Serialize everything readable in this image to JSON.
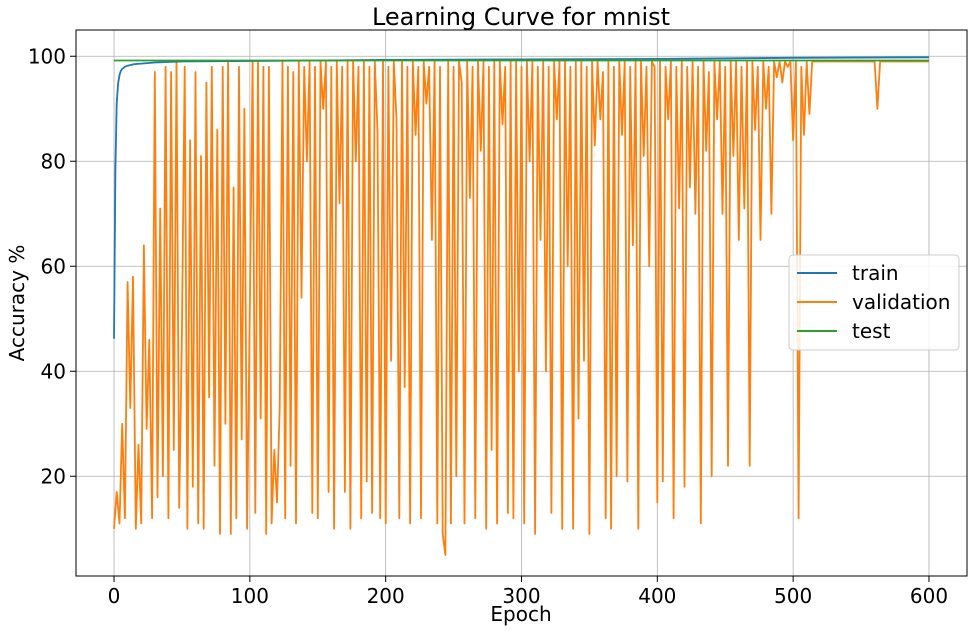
{
  "chart_data": {
    "type": "line",
    "title": "Learning Curve for mnist",
    "xlabel": "Epoch",
    "ylabel": "Accuracy %",
    "xlim": [
      -28,
      628
    ],
    "ylim": [
      1,
      105
    ],
    "xticks": [
      0,
      100,
      200,
      300,
      400,
      500,
      600
    ],
    "yticks": [
      20,
      40,
      60,
      80,
      100
    ],
    "grid": true,
    "legend_position": "center-right",
    "series": [
      {
        "name": "train",
        "color": "#1f77b4",
        "points": [
          [
            0,
            46.2
          ],
          [
            1,
            78.5
          ],
          [
            2,
            91.0
          ],
          [
            3,
            94.8
          ],
          [
            4,
            96.4
          ],
          [
            5,
            97.2
          ],
          [
            6,
            97.6
          ],
          [
            8,
            98.0
          ],
          [
            10,
            98.2
          ],
          [
            15,
            98.5
          ],
          [
            20,
            98.6
          ],
          [
            30,
            98.8
          ],
          [
            50,
            99.0
          ],
          [
            100,
            99.1
          ],
          [
            150,
            99.2
          ],
          [
            200,
            99.3
          ],
          [
            300,
            99.4
          ],
          [
            400,
            99.5
          ],
          [
            500,
            99.7
          ],
          [
            600,
            99.8
          ]
        ]
      },
      {
        "name": "validation",
        "color": "#ff7f0e",
        "points": [
          [
            0,
            10
          ],
          [
            2,
            17
          ],
          [
            4,
            11
          ],
          [
            6,
            30
          ],
          [
            8,
            12
          ],
          [
            10,
            57
          ],
          [
            12,
            33
          ],
          [
            14,
            58
          ],
          [
            16,
            10
          ],
          [
            18,
            26
          ],
          [
            20,
            11
          ],
          [
            22,
            64
          ],
          [
            24,
            29
          ],
          [
            26,
            46
          ],
          [
            28,
            12
          ],
          [
            30,
            97
          ],
          [
            32,
            16
          ],
          [
            34,
            71
          ],
          [
            36,
            20
          ],
          [
            38,
            98
          ],
          [
            40,
            12
          ],
          [
            42,
            97
          ],
          [
            44,
            25
          ],
          [
            46,
            99
          ],
          [
            48,
            14
          ],
          [
            50,
            47
          ],
          [
            52,
            98
          ],
          [
            54,
            10
          ],
          [
            56,
            84
          ],
          [
            58,
            18
          ],
          [
            60,
            97
          ],
          [
            62,
            11
          ],
          [
            64,
            81
          ],
          [
            66,
            10
          ],
          [
            68,
            95
          ],
          [
            70,
            35
          ],
          [
            72,
            98
          ],
          [
            74,
            22
          ],
          [
            76,
            86
          ],
          [
            78,
            9
          ],
          [
            80,
            98
          ],
          [
            82,
            30
          ],
          [
            84,
            99
          ],
          [
            86,
            9
          ],
          [
            88,
            75
          ],
          [
            90,
            12
          ],
          [
            92,
            98
          ],
          [
            94,
            27
          ],
          [
            96,
            90
          ],
          [
            98,
            10
          ],
          [
            100,
            53
          ],
          [
            102,
            99
          ],
          [
            104,
            13
          ],
          [
            106,
            99
          ],
          [
            108,
            31
          ],
          [
            110,
            98
          ],
          [
            112,
            9
          ],
          [
            114,
            98
          ],
          [
            116,
            11
          ],
          [
            118,
            25
          ],
          [
            120,
            15
          ],
          [
            122,
            33
          ],
          [
            124,
            99
          ],
          [
            126,
            12
          ],
          [
            128,
            98
          ],
          [
            130,
            22
          ],
          [
            132,
            97
          ],
          [
            134,
            11
          ],
          [
            136,
            99
          ],
          [
            138,
            54
          ],
          [
            140,
            98
          ],
          [
            142,
            80
          ],
          [
            144,
            99
          ],
          [
            146,
            13
          ],
          [
            148,
            98
          ],
          [
            150,
            12
          ],
          [
            152,
            99
          ],
          [
            154,
            90
          ],
          [
            156,
            99
          ],
          [
            158,
            17
          ],
          [
            160,
            98
          ],
          [
            162,
            10
          ],
          [
            164,
            99
          ],
          [
            166,
            72
          ],
          [
            168,
            98
          ],
          [
            170,
            17
          ],
          [
            172,
            99
          ],
          [
            174,
            10
          ],
          [
            176,
            99
          ],
          [
            178,
            80
          ],
          [
            180,
            98
          ],
          [
            182,
            12
          ],
          [
            184,
            99
          ],
          [
            186,
            19
          ],
          [
            188,
            98
          ],
          [
            190,
            13
          ],
          [
            192,
            99
          ],
          [
            194,
            86
          ],
          [
            196,
            12
          ],
          [
            198,
            99
          ],
          [
            200,
            11
          ],
          [
            202,
            98
          ],
          [
            204,
            42
          ],
          [
            206,
            99
          ],
          [
            208,
            88
          ],
          [
            210,
            12
          ],
          [
            212,
            99
          ],
          [
            214,
            37
          ],
          [
            216,
            98
          ],
          [
            218,
            11
          ],
          [
            220,
            99
          ],
          [
            222,
            85
          ],
          [
            224,
            98
          ],
          [
            226,
            12
          ],
          [
            228,
            99
          ],
          [
            230,
            91
          ],
          [
            232,
            98
          ],
          [
            234,
            65
          ],
          [
            236,
            99
          ],
          [
            238,
            11
          ],
          [
            240,
            98
          ],
          [
            242,
            9
          ],
          [
            244,
            5
          ],
          [
            246,
            99
          ],
          [
            248,
            11
          ],
          [
            250,
            98
          ],
          [
            252,
            20
          ],
          [
            254,
            99
          ],
          [
            256,
            95
          ],
          [
            258,
            11
          ],
          [
            260,
            99
          ],
          [
            262,
            73
          ],
          [
            264,
            98
          ],
          [
            266,
            12
          ],
          [
            268,
            99
          ],
          [
            270,
            82
          ],
          [
            272,
            99
          ],
          [
            274,
            10
          ],
          [
            276,
            98
          ],
          [
            278,
            25
          ],
          [
            280,
            99
          ],
          [
            282,
            11
          ],
          [
            284,
            99
          ],
          [
            286,
            87
          ],
          [
            288,
            98
          ],
          [
            290,
            13
          ],
          [
            292,
            99
          ],
          [
            294,
            12
          ],
          [
            296,
            99
          ],
          [
            298,
            40
          ],
          [
            300,
            98
          ],
          [
            302,
            11
          ],
          [
            304,
            99
          ],
          [
            306,
            80
          ],
          [
            308,
            99
          ],
          [
            310,
            9
          ],
          [
            312,
            98
          ],
          [
            314,
            65
          ],
          [
            316,
            99
          ],
          [
            318,
            40
          ],
          [
            320,
            98
          ],
          [
            322,
            13
          ],
          [
            324,
            99
          ],
          [
            326,
            88
          ],
          [
            328,
            99
          ],
          [
            330,
            10
          ],
          [
            332,
            99
          ],
          [
            334,
            60
          ],
          [
            336,
            98
          ],
          [
            338,
            10
          ],
          [
            340,
            99
          ],
          [
            342,
            31
          ],
          [
            344,
            99
          ],
          [
            346,
            42
          ],
          [
            348,
            98
          ],
          [
            350,
            9
          ],
          [
            352,
            99
          ],
          [
            354,
            83
          ],
          [
            356,
            99
          ],
          [
            358,
            88
          ],
          [
            360,
            97
          ],
          [
            362,
            12
          ],
          [
            364,
            99
          ],
          [
            366,
            10
          ],
          [
            368,
            98
          ],
          [
            370,
            20
          ],
          [
            372,
            99
          ],
          [
            374,
            85
          ],
          [
            376,
            99
          ],
          [
            378,
            19
          ],
          [
            380,
            98
          ],
          [
            382,
            64
          ],
          [
            384,
            99
          ],
          [
            386,
            10
          ],
          [
            388,
            99
          ],
          [
            390,
            81
          ],
          [
            392,
            98
          ],
          [
            394,
            60
          ],
          [
            396,
            99
          ],
          [
            398,
            98
          ],
          [
            400,
            15
          ],
          [
            402,
            99
          ],
          [
            404,
            19
          ],
          [
            406,
            98
          ],
          [
            408,
            88
          ],
          [
            410,
            99
          ],
          [
            412,
            12
          ],
          [
            414,
            98
          ],
          [
            416,
            71
          ],
          [
            418,
            99
          ],
          [
            420,
            18
          ],
          [
            422,
            98
          ],
          [
            424,
            75
          ],
          [
            426,
            99
          ],
          [
            428,
            70
          ],
          [
            430,
            98
          ],
          [
            432,
            11
          ],
          [
            434,
            99
          ],
          [
            436,
            82
          ],
          [
            438,
            97
          ],
          [
            440,
            20
          ],
          [
            442,
            99
          ],
          [
            444,
            88
          ],
          [
            446,
            99
          ],
          [
            448,
            70
          ],
          [
            450,
            98
          ],
          [
            452,
            22
          ],
          [
            454,
            99
          ],
          [
            456,
            81
          ],
          [
            458,
            99
          ],
          [
            460,
            65
          ],
          [
            462,
            98
          ],
          [
            464,
            71
          ],
          [
            466,
            99
          ],
          [
            468,
            22
          ],
          [
            470,
            99
          ],
          [
            472,
            86
          ],
          [
            474,
            98
          ],
          [
            476,
            65
          ],
          [
            478,
            99
          ],
          [
            480,
            90
          ],
          [
            482,
            98
          ],
          [
            484,
            70
          ],
          [
            486,
            99
          ],
          [
            488,
            96
          ],
          [
            490,
            99
          ],
          [
            492,
            95
          ],
          [
            494,
            99
          ],
          [
            496,
            98
          ],
          [
            498,
            99
          ],
          [
            500,
            84
          ],
          [
            502,
            99
          ],
          [
            504,
            12
          ],
          [
            506,
            98
          ],
          [
            508,
            85
          ],
          [
            510,
            99
          ],
          [
            512,
            89
          ],
          [
            514,
            99
          ],
          [
            516,
            99
          ],
          [
            540,
            99
          ],
          [
            560,
            99
          ],
          [
            562,
            90
          ],
          [
            564,
            99
          ],
          [
            580,
            99
          ],
          [
            600,
            99
          ]
        ]
      },
      {
        "name": "test",
        "color": "#2ca02c",
        "points": [
          [
            0,
            99.2
          ],
          [
            600,
            99.2
          ]
        ]
      }
    ]
  }
}
